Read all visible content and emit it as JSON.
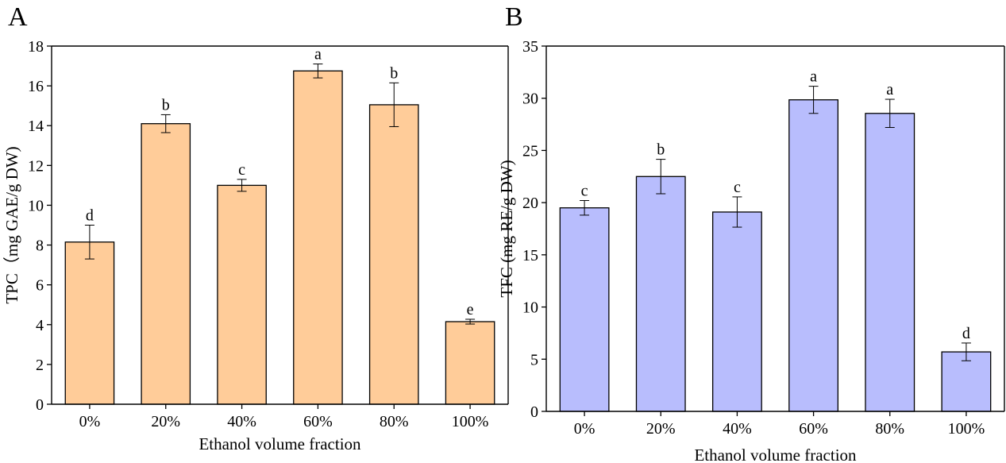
{
  "chart_data": [
    {
      "panel": "A",
      "type": "bar",
      "categories": [
        "0%",
        "20%",
        "40%",
        "60%",
        "80%",
        "100%"
      ],
      "values": [
        8.15,
        14.1,
        11.0,
        16.75,
        15.05,
        4.15
      ],
      "errors": [
        0.85,
        0.45,
        0.3,
        0.35,
        1.1,
        0.12
      ],
      "significance": [
        "d",
        "b",
        "c",
        "a",
        "b",
        "e"
      ],
      "xlabel": "Ethanol volume fraction",
      "ylabel": "TPC（mg GAE/g DW)",
      "ylim": [
        0,
        18
      ],
      "yticks": [
        0,
        2,
        4,
        6,
        8,
        10,
        12,
        14,
        16,
        18
      ],
      "bar_color": "#FFCC99",
      "grid": false
    },
    {
      "panel": "B",
      "type": "bar",
      "categories": [
        "0%",
        "20%",
        "40%",
        "60%",
        "80%",
        "100%"
      ],
      "values": [
        19.5,
        22.5,
        19.1,
        29.85,
        28.55,
        5.7
      ],
      "errors": [
        0.7,
        1.65,
        1.45,
        1.3,
        1.35,
        0.85
      ],
      "significance": [
        "c",
        "b",
        "c",
        "a",
        "a",
        "d"
      ],
      "xlabel": "Ethanol volume fraction",
      "ylabel": "TFC (mg RE/g DW)",
      "ylim": [
        0,
        35
      ],
      "yticks": [
        0,
        5,
        10,
        15,
        20,
        25,
        30,
        35
      ],
      "bar_color": "#B8BDFD",
      "grid": false
    }
  ]
}
